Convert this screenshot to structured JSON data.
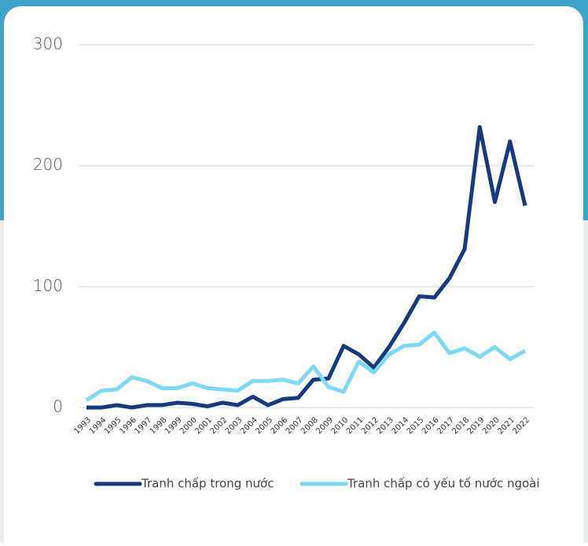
{
  "chart_data": {
    "type": "line",
    "categories": [
      "1993",
      "1994",
      "1995",
      "1996",
      "1997",
      "1998",
      "1999",
      "2000",
      "2001",
      "2002",
      "2003",
      "2004",
      "2005",
      "2006",
      "2007",
      "2008",
      "2009",
      "2010",
      "2011",
      "2012",
      "2013",
      "2014",
      "2015",
      "2016",
      "2017",
      "2018",
      "2019",
      "2020",
      "2021",
      "2022"
    ],
    "series": [
      {
        "name": "Tranh chấp trong nước",
        "color": "#163a7c",
        "values": [
          0,
          0,
          2,
          0,
          2,
          2,
          4,
          3,
          1,
          4,
          2,
          9,
          2,
          7,
          8,
          23,
          24,
          51,
          44,
          33,
          50,
          70,
          92,
          91,
          107,
          131,
          232,
          170,
          220,
          167
        ]
      },
      {
        "name": "Tranh chấp có yếu tố nước ngoài",
        "color": "#7fd8f6",
        "values": [
          6,
          14,
          15,
          25,
          22,
          16,
          16,
          20,
          16,
          15,
          14,
          22,
          22,
          23,
          20,
          34,
          17,
          13,
          38,
          29,
          44,
          51,
          52,
          62,
          45,
          49,
          42,
          50,
          40,
          47
        ]
      }
    ],
    "ylim": [
      0,
      300
    ],
    "yticks": [
      0,
      100,
      200,
      300
    ],
    "grid": true,
    "legend": "bottom"
  }
}
